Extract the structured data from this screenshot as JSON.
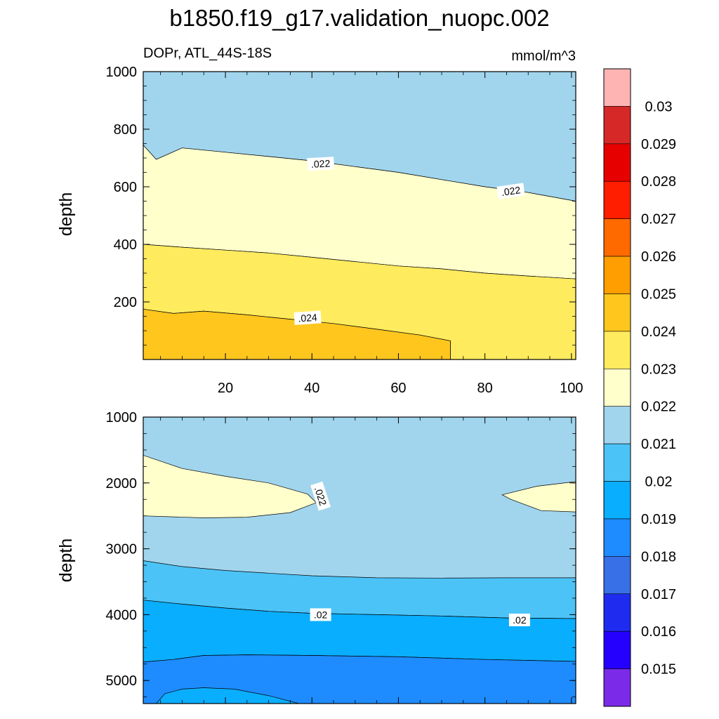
{
  "chart_data": {
    "type": "contour",
    "title": "b1850.f19_g17.validation_nuopc.002",
    "subtitle_left": "DOPr, ATL_44S-18S",
    "subtitle_right": "mmol/m^3",
    "colors": {
      "c_017": "#1F2CF0",
      "c_018": "#3870E8",
      "c_019": "#1E8CFF",
      "c_020": "#0AAEFF",
      "c_021": "#4BC3F7",
      "c_022": "#A1D5EE",
      "c_023": "#FFFFCC",
      "c_024": "#FFEB5E",
      "c_025": "#FFC61E"
    },
    "top_panel": {
      "ylabel": "depth",
      "xlim": [
        1,
        101
      ],
      "ylim": [
        1000,
        0
      ],
      "x_ticks": [
        "20",
        "40",
        "60",
        "80",
        "100"
      ],
      "x_tick_values": [
        20,
        40,
        60,
        80,
        100
      ],
      "y_ticks": [
        "200",
        "400",
        "600",
        "800",
        "1000"
      ],
      "y_tick_values": [
        200,
        400,
        600,
        800,
        1000
      ],
      "contour_labels": [
        {
          "text": ".024",
          "x": 39,
          "depth": 145,
          "angle": -4
        },
        {
          "text": ".022",
          "x": 42,
          "depth": 680,
          "angle": -3
        },
        {
          "text": ".022",
          "x": 86,
          "depth": 585,
          "angle": -8
        }
      ],
      "regions": [
        {
          "color_key": "c_022",
          "bound": [
            [
              1,
              1000
            ],
            [
              101,
              1000
            ],
            [
              101,
              550
            ],
            [
              90,
              580
            ],
            [
              80,
              600
            ],
            [
              70,
              625
            ],
            [
              60,
              650
            ],
            [
              50,
              670
            ],
            [
              40,
              690
            ],
            [
              30,
              705
            ],
            [
              20,
              720
            ],
            [
              10,
              735
            ],
            [
              4,
              695
            ],
            [
              1,
              745
            ]
          ]
        },
        {
          "color_key": "c_023",
          "bound": [
            [
              1,
              745
            ],
            [
              4,
              695
            ],
            [
              10,
              735
            ],
            [
              20,
              720
            ],
            [
              30,
              705
            ],
            [
              40,
              690
            ],
            [
              50,
              670
            ],
            [
              60,
              650
            ],
            [
              70,
              625
            ],
            [
              80,
              600
            ],
            [
              90,
              580
            ],
            [
              101,
              550
            ],
            [
              101,
              280
            ],
            [
              90,
              290
            ],
            [
              80,
              300
            ],
            [
              70,
              315
            ],
            [
              60,
              325
            ],
            [
              50,
              340
            ],
            [
              40,
              355
            ],
            [
              30,
              370
            ],
            [
              20,
              380
            ],
            [
              10,
              390
            ],
            [
              1,
              400
            ]
          ]
        },
        {
          "color_key": "c_024",
          "bound": [
            [
              1,
              400
            ],
            [
              10,
              390
            ],
            [
              20,
              380
            ],
            [
              30,
              370
            ],
            [
              40,
              355
            ],
            [
              50,
              340
            ],
            [
              60,
              325
            ],
            [
              70,
              315
            ],
            [
              80,
              300
            ],
            [
              90,
              290
            ],
            [
              101,
              280
            ],
            [
              101,
              0
            ],
            [
              72,
              0
            ],
            [
              72,
              65
            ],
            [
              65,
              85
            ],
            [
              55,
              105
            ],
            [
              45,
              125
            ],
            [
              35,
              140
            ],
            [
              25,
              155
            ],
            [
              15,
              168
            ],
            [
              8,
              160
            ],
            [
              1,
              175
            ]
          ]
        },
        {
          "color_key": "c_025",
          "bound": [
            [
              1,
              175
            ],
            [
              8,
              160
            ],
            [
              15,
              168
            ],
            [
              25,
              155
            ],
            [
              35,
              140
            ],
            [
              45,
              125
            ],
            [
              55,
              105
            ],
            [
              65,
              85
            ],
            [
              72,
              65
            ],
            [
              72,
              0
            ],
            [
              1,
              0
            ]
          ]
        }
      ]
    },
    "bottom_panel": {
      "ylabel": "depth",
      "xlim": [
        1,
        101
      ],
      "ylim": [
        1000,
        5350
      ],
      "y_ticks": [
        "1000",
        "2000",
        "3000",
        "4000",
        "5000"
      ],
      "y_tick_values": [
        1000,
        2000,
        3000,
        4000,
        5000
      ],
      "contour_labels": [
        {
          "text": ".022",
          "x": 42,
          "depth": 2200,
          "angle": 72
        },
        {
          "text": ".02",
          "x": 42,
          "depth": 4000,
          "angle": 0
        },
        {
          "text": ".02",
          "x": 88,
          "depth": 4080,
          "angle": 0
        }
      ],
      "regions": [
        {
          "color_key": "c_022",
          "bound": [
            [
              1,
              1000
            ],
            [
              101,
              1000
            ],
            [
              101,
              3450
            ],
            [
              1,
              3450
            ]
          ]
        },
        {
          "color_key": "c_023",
          "bound": [
            [
              1,
              1580
            ],
            [
              10,
              1780
            ],
            [
              20,
              1900
            ],
            [
              30,
              2000
            ],
            [
              39,
              2170
            ],
            [
              41,
              2300
            ],
            [
              35,
              2450
            ],
            [
              25,
              2520
            ],
            [
              15,
              2530
            ],
            [
              1,
              2500
            ]
          ]
        },
        {
          "color_key": "c_023",
          "bound": [
            [
              84,
              2180
            ],
            [
              92,
              2050
            ],
            [
              101,
              1980
            ],
            [
              101,
              2440
            ],
            [
              93,
              2420
            ],
            [
              86,
              2250
            ]
          ]
        },
        {
          "color_key": "c_021",
          "bound": [
            [
              1,
              3180
            ],
            [
              10,
              3270
            ],
            [
              20,
              3330
            ],
            [
              30,
              3370
            ],
            [
              40,
              3410
            ],
            [
              55,
              3440
            ],
            [
              70,
              3445
            ],
            [
              85,
              3440
            ],
            [
              101,
              3440
            ],
            [
              101,
              4060
            ],
            [
              85,
              4050
            ],
            [
              70,
              4020
            ],
            [
              55,
              4000
            ],
            [
              40,
              3980
            ],
            [
              30,
              3950
            ],
            [
              20,
              3900
            ],
            [
              10,
              3840
            ],
            [
              1,
              3780
            ]
          ]
        },
        {
          "color_key": "c_020",
          "bound": [
            [
              1,
              3780
            ],
            [
              10,
              3840
            ],
            [
              20,
              3900
            ],
            [
              30,
              3950
            ],
            [
              40,
              3980
            ],
            [
              55,
              4000
            ],
            [
              70,
              4020
            ],
            [
              85,
              4050
            ],
            [
              101,
              4060
            ],
            [
              101,
              4710
            ],
            [
              80,
              4680
            ],
            [
              60,
              4640
            ],
            [
              40,
              4620
            ],
            [
              25,
              4610
            ],
            [
              15,
              4620
            ],
            [
              8,
              4680
            ],
            [
              1,
              4720
            ]
          ]
        },
        {
          "color_key": "c_019",
          "bound": [
            [
              1,
              4720
            ],
            [
              8,
              4680
            ],
            [
              15,
              4620
            ],
            [
              25,
              4610
            ],
            [
              40,
              4620
            ],
            [
              60,
              4640
            ],
            [
              80,
              4680
            ],
            [
              101,
              4710
            ],
            [
              101,
              5350
            ],
            [
              1,
              5350
            ]
          ]
        },
        {
          "color_key": "c_020",
          "bound": [
            [
              4,
              5350
            ],
            [
              6,
              5200
            ],
            [
              10,
              5130
            ],
            [
              15,
              5110
            ],
            [
              22,
              5130
            ],
            [
              30,
              5230
            ],
            [
              37,
              5350
            ]
          ]
        }
      ]
    },
    "colorbar": {
      "labels": [
        "0.03",
        "0.029",
        "0.028",
        "0.027",
        "0.026",
        "0.025",
        "0.024",
        "0.023",
        "0.022",
        "0.021",
        "0.02",
        "0.019",
        "0.018",
        "0.017",
        "0.016",
        "0.015"
      ],
      "colors": [
        "#FFB4B4",
        "#D72828",
        "#E60000",
        "#FF1E00",
        "#FF6A00",
        "#FF9E00",
        "#FFC61E",
        "#FFEB5E",
        "#FFFFCC",
        "#A1D5EE",
        "#4BC3F7",
        "#0AAEFF",
        "#1E8CFF",
        "#3870E8",
        "#1F2CF0",
        "#2600FF",
        "#7B2AE8"
      ]
    }
  }
}
